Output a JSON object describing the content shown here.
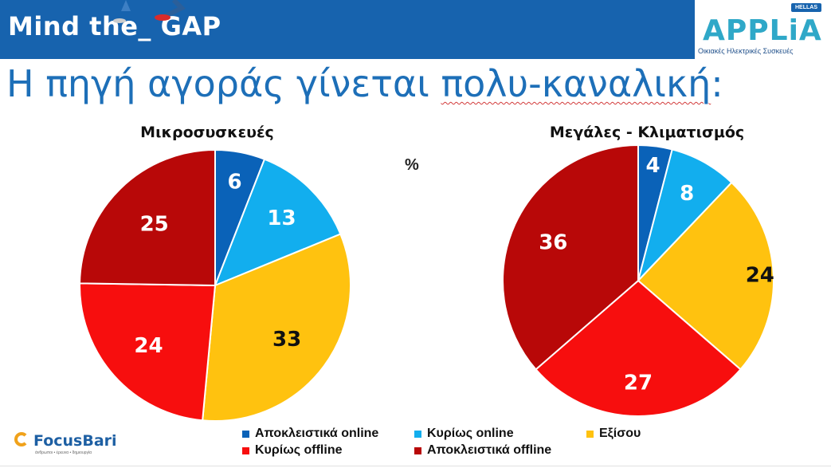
{
  "header": {
    "title": "Mind the_ GAP",
    "logo": {
      "badge": "HELLAS",
      "word": "APPLiA",
      "subtitle": "Οικιακές Ηλεκτρικές Συσκευές"
    }
  },
  "headline": {
    "before": "Η πηγή αγοράς γίνεται ",
    "underlined": "πολυ-καναλική",
    "after": ":"
  },
  "unit_label": "%",
  "colors": {
    "Αποκλειστικά online": "#0a62b8",
    "Κυρίως online": "#12aeee",
    "Εξίσου": "#ffc20f",
    "Κυρίως offline": "#f70e0e",
    "Αποκλειστικά offline": "#b80808",
    "banner": "#1763ae"
  },
  "chart_data": [
    {
      "type": "pie",
      "title": "Μικροσυσκευές",
      "categories": [
        "Αποκλειστικά online",
        "Κυρίως online",
        "Εξίσου",
        "Κυρίως offline",
        "Αποκλειστικά offline"
      ],
      "values": [
        6,
        13,
        33,
        24,
        25
      ],
      "legend": "bottom"
    },
    {
      "type": "pie",
      "title": "Μεγάλες - Κλιματισμός",
      "categories": [
        "Αποκλειστικά online",
        "Κυρίως online",
        "Εξίσου",
        "Κυρίως offline",
        "Αποκλειστικά offline"
      ],
      "values": [
        4,
        8,
        24,
        27,
        36
      ],
      "legend": "bottom"
    }
  ],
  "legend": [
    {
      "label": "Αποκλειστικά online"
    },
    {
      "label": "Κυρίως online"
    },
    {
      "label": "Εξίσου"
    },
    {
      "label": "Κυρίως offline"
    },
    {
      "label": "Αποκλειστικά offline"
    }
  ],
  "footer": {
    "brand": "FocusBari",
    "tagline": "άνθρωποι • έρευνα • δημιουργία"
  }
}
